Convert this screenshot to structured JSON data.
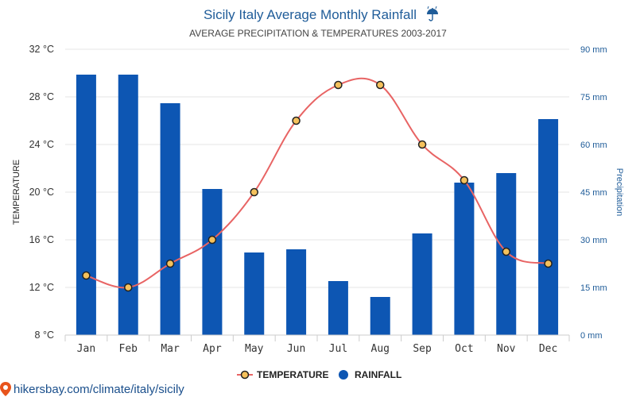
{
  "chart_data": {
    "type": "bar+line",
    "title": "Sicily Italy Average Monthly Rainfall",
    "title_icon": "umbrella-rain-icon",
    "subtitle": "AVERAGE PRECIPITATION & TEMPERATURES 2003-2017",
    "categories": [
      "Jan",
      "Feb",
      "Mar",
      "Apr",
      "May",
      "Jun",
      "Jul",
      "Aug",
      "Sep",
      "Oct",
      "Nov",
      "Dec"
    ],
    "series": [
      {
        "name": "TEMPERATURE",
        "type": "line",
        "axis": "left",
        "unit": "°C",
        "values": [
          13,
          12,
          14,
          16,
          20,
          26,
          29,
          29,
          24,
          21,
          15,
          14
        ]
      },
      {
        "name": "RAINFALL",
        "type": "bar",
        "axis": "right",
        "unit": "mm",
        "values": [
          82,
          82,
          73,
          46,
          26,
          27,
          17,
          12,
          32,
          48,
          51,
          68
        ]
      }
    ],
    "ylabel": "TEMPERATURE",
    "y2label": "Precipitation",
    "ylim": [
      8,
      32
    ],
    "y_ticks": [
      "32 °C",
      "28 °C",
      "24 °C",
      "20 °C",
      "16 °C",
      "12 °C",
      "8 °C"
    ],
    "y2lim": [
      0,
      90
    ],
    "y2_ticks": [
      "90 mm",
      "75 mm",
      "60 mm",
      "45 mm",
      "30 mm",
      "15 mm",
      "0 mm"
    ],
    "legend_position": "bottom-center",
    "colors": {
      "bar": "#0d56b3",
      "line": "#e86464",
      "marker_fill": "#f5c15c",
      "marker_stroke": "#222222",
      "grid": "#e6e6e6"
    }
  },
  "footer": {
    "site": "hikersbay.com/climate/italy/sicily",
    "icon": "map-pin-icon"
  }
}
